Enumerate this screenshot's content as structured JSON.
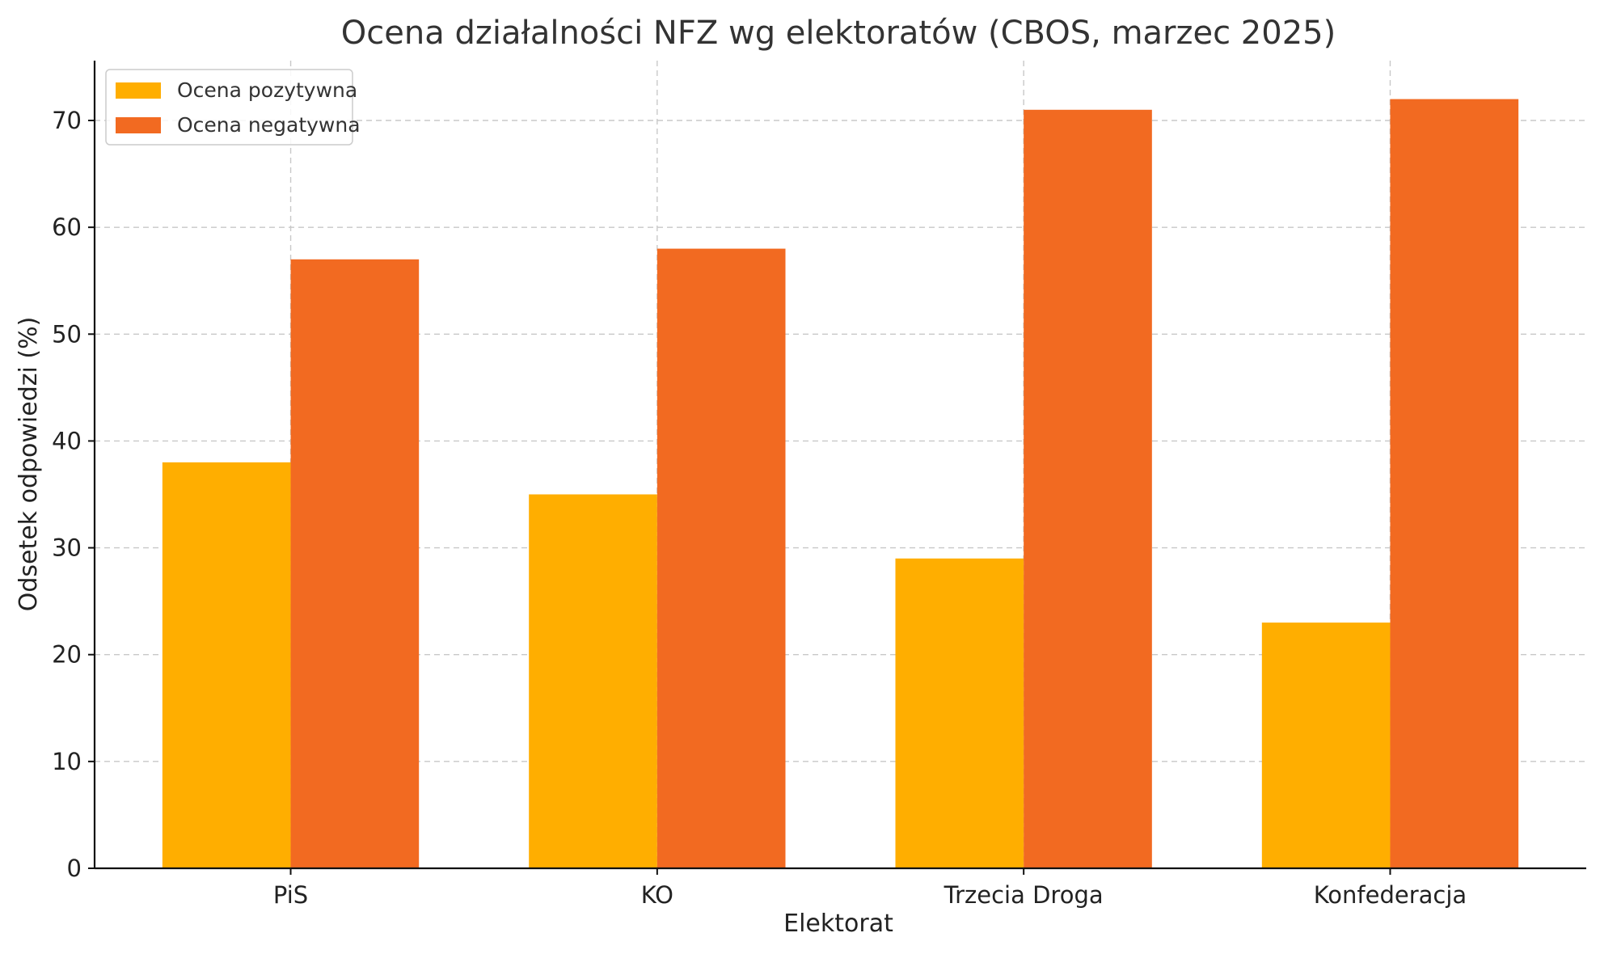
{
  "chart_data": {
    "type": "bar",
    "title": "Ocena działalności NFZ wg elektoratów (CBOS, marzec 2025)",
    "xlabel": "Elektorat",
    "ylabel": "Odsetek odpowiedzi (%)",
    "categories": [
      "PiS",
      "KO",
      "Trzecia Droga",
      "Konfederacja"
    ],
    "series": [
      {
        "name": "Ocena pozytywna",
        "values": [
          38,
          35,
          29,
          23
        ],
        "color": "#FFAE00"
      },
      {
        "name": "Ocena negatywna",
        "values": [
          57,
          58,
          71,
          72
        ],
        "color": "#F26A21"
      }
    ],
    "ylim": [
      0,
      75.6
    ],
    "yticks": [
      0,
      10,
      20,
      30,
      40,
      50,
      60,
      70
    ],
    "grid": true,
    "legend_position": "top-left"
  }
}
